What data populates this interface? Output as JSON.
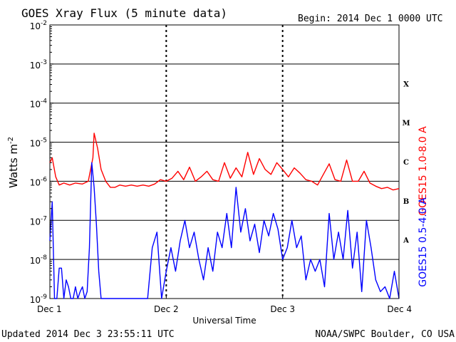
{
  "chart_data": {
    "type": "line",
    "title": "GOES Xray Flux (5 minute data)",
    "begin_label": "Begin:  2014 Dec 1 0000 UTC",
    "xlabel": "Universal Time",
    "ylabel": "Watts m",
    "ylabel_superscript": "-2",
    "yscale": "log",
    "ylim": [
      1e-09,
      0.01
    ],
    "xlim": [
      0,
      3
    ],
    "x_units": "days since 2014 Dec 1 00:00 UTC",
    "x_ticks": [
      {
        "value": 0,
        "label": "Dec 1"
      },
      {
        "value": 1,
        "label": "Dec 2"
      },
      {
        "value": 2,
        "label": "Dec 3"
      },
      {
        "value": 3,
        "label": "Dec 4"
      }
    ],
    "y_ticks": [
      {
        "exp": -9,
        "label": "10",
        "sup": "-9"
      },
      {
        "exp": -8,
        "label": "10",
        "sup": "-8"
      },
      {
        "exp": -7,
        "label": "10",
        "sup": "-7"
      },
      {
        "exp": -6,
        "label": "10",
        "sup": "-6"
      },
      {
        "exp": -5,
        "label": "10",
        "sup": "-5"
      },
      {
        "exp": -4,
        "label": "10",
        "sup": "-4"
      },
      {
        "exp": -3,
        "label": "10",
        "sup": "-3"
      },
      {
        "exp": -2,
        "label": "10",
        "sup": "-2"
      }
    ],
    "flare_classes": [
      {
        "label": "A",
        "exp": -7.5
      },
      {
        "label": "B",
        "exp": -6.5
      },
      {
        "label": "C",
        "exp": -5.5
      },
      {
        "label": "M",
        "exp": -4.5
      },
      {
        "label": "X",
        "exp": -3.5
      }
    ],
    "series": [
      {
        "name": "GOES15 1.0-8.0 A",
        "color": "#ff0000",
        "x": [
          0.0,
          0.02,
          0.05,
          0.08,
          0.12,
          0.17,
          0.22,
          0.28,
          0.33,
          0.37,
          0.38,
          0.41,
          0.44,
          0.48,
          0.52,
          0.56,
          0.6,
          0.65,
          0.7,
          0.75,
          0.8,
          0.85,
          0.9,
          0.95,
          1.0,
          1.05,
          1.1,
          1.15,
          1.2,
          1.25,
          1.3,
          1.35,
          1.4,
          1.45,
          1.5,
          1.55,
          1.6,
          1.65,
          1.7,
          1.75,
          1.8,
          1.85,
          1.9,
          1.95,
          2.0,
          2.05,
          2.1,
          2.15,
          2.2,
          2.25,
          2.3,
          2.35,
          2.4,
          2.45,
          2.5,
          2.55,
          2.6,
          2.65,
          2.7,
          2.75,
          2.8,
          2.85,
          2.9,
          2.95,
          3.0
        ],
        "values": [
          3e-06,
          4e-06,
          1.3e-06,
          8e-07,
          9e-07,
          8e-07,
          9e-07,
          8.5e-07,
          1e-06,
          4e-06,
          1.7e-05,
          7e-06,
          2e-06,
          1e-06,
          7e-07,
          7e-07,
          8e-07,
          7.5e-07,
          8e-07,
          7.5e-07,
          8e-07,
          7.5e-07,
          8.5e-07,
          1.1e-06,
          1e-06,
          1.2e-06,
          1.8e-06,
          1.1e-06,
          2.3e-06,
          1e-06,
          1.3e-06,
          1.8e-06,
          1.1e-06,
          1e-06,
          3e-06,
          1.2e-06,
          2.2e-06,
          1.3e-06,
          5.5e-06,
          1.5e-06,
          3.8e-06,
          2e-06,
          1.5e-06,
          3e-06,
          2e-06,
          1.3e-06,
          2.2e-06,
          1.6e-06,
          1.1e-06,
          1e-06,
          8e-07,
          1.5e-06,
          2.8e-06,
          1.1e-06,
          1e-06,
          3.5e-06,
          1e-06,
          1e-06,
          1.8e-06,
          9e-07,
          7.5e-07,
          6.5e-07,
          7e-07,
          6e-07,
          6.5e-07
        ]
      },
      {
        "name": "GOES15 0.5-4.0 A",
        "color": "#0000ff",
        "x": [
          0.0,
          0.02,
          0.04,
          0.06,
          0.08,
          0.1,
          0.12,
          0.14,
          0.16,
          0.18,
          0.2,
          0.22,
          0.24,
          0.26,
          0.28,
          0.3,
          0.32,
          0.34,
          0.36,
          0.38,
          0.4,
          0.42,
          0.44,
          0.46,
          0.48,
          0.52,
          0.56,
          0.6,
          0.64,
          0.68,
          0.72,
          0.76,
          0.8,
          0.84,
          0.88,
          0.92,
          0.96,
          1.0,
          1.04,
          1.08,
          1.12,
          1.16,
          1.2,
          1.24,
          1.28,
          1.32,
          1.36,
          1.4,
          1.44,
          1.48,
          1.52,
          1.56,
          1.6,
          1.64,
          1.68,
          1.72,
          1.76,
          1.8,
          1.84,
          1.88,
          1.92,
          1.96,
          2.0,
          2.04,
          2.08,
          2.12,
          2.16,
          2.2,
          2.24,
          2.28,
          2.32,
          2.36,
          2.4,
          2.44,
          2.48,
          2.52,
          2.56,
          2.6,
          2.64,
          2.68,
          2.72,
          2.76,
          2.8,
          2.84,
          2.88,
          2.92,
          2.96,
          3.0
        ],
        "values": [
          3e-08,
          3e-07,
          1e-09,
          1e-09,
          6e-09,
          6e-09,
          1e-09,
          3e-09,
          2e-09,
          1e-09,
          1e-09,
          2e-09,
          1e-09,
          1.5e-09,
          2e-09,
          1e-09,
          1.5e-09,
          2e-08,
          3e-06,
          7e-07,
          8e-08,
          5e-09,
          1e-09,
          1e-09,
          1e-09,
          1e-09,
          1e-09,
          1e-09,
          1e-09,
          1e-09,
          1e-09,
          1e-09,
          1e-09,
          1e-09,
          2e-08,
          5e-08,
          1e-09,
          5e-09,
          2e-08,
          5e-09,
          3e-08,
          1e-07,
          2e-08,
          5e-08,
          1e-08,
          3e-09,
          2e-08,
          5e-09,
          5e-08,
          2e-08,
          1.5e-07,
          2e-08,
          7e-07,
          5e-08,
          2e-07,
          3e-08,
          8e-08,
          1.5e-08,
          1e-07,
          4e-08,
          1.5e-07,
          6e-08,
          1e-08,
          2e-08,
          1e-07,
          2e-08,
          4e-08,
          3e-09,
          1e-08,
          5e-09,
          1e-08,
          2e-09,
          1.5e-07,
          1e-08,
          5e-08,
          1e-08,
          1.8e-07,
          6e-09,
          5e-08,
          1.5e-09,
          1e-07,
          2e-08,
          3e-09,
          1.5e-09,
          2e-09,
          1e-09,
          5e-09,
          1e-09
        ]
      }
    ]
  },
  "footer": {
    "updated": "Updated 2014 Dec  3 23:55:11 UTC",
    "credit": "NOAA/SWPC Boulder, CO USA"
  }
}
